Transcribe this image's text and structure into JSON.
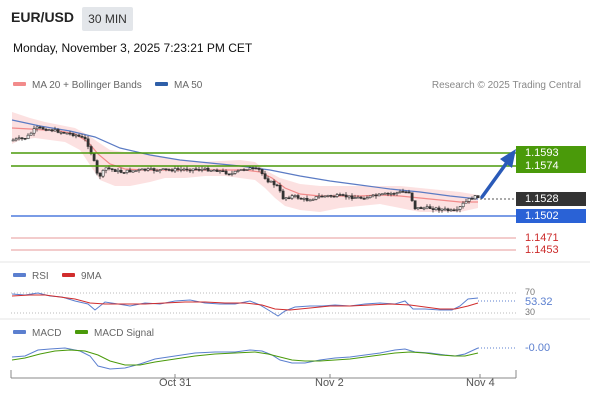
{
  "header": {
    "pair": "EUR/USD",
    "timeframe": "30 MIN",
    "datetime": "Monday, November 3, 2025 7:23:21 PM CET"
  },
  "legend": {
    "ma20_label": "MA 20 + Bollinger Bands",
    "ma50_label": "MA 50",
    "credit": "Research © 2025 Trading Central",
    "ma20_color": "#f28b8b",
    "ma50_color": "#2f5fa8"
  },
  "levels": {
    "r2": "1.1593",
    "r1": "1.1574",
    "current": "1.1528",
    "pivot": "1.1502",
    "s1": "1.1471",
    "s2": "1.1453"
  },
  "colors": {
    "resistance": "#4a9a0a",
    "pivot": "#2a62d6",
    "support": "#cc2b2b",
    "current": "#333333",
    "arrow": "#2a5ab8"
  },
  "rsi": {
    "label": "RSI",
    "ma_label": "9MA",
    "level_upper": "70",
    "level_lower": "30",
    "value": "53.32"
  },
  "macd": {
    "label": "MACD",
    "signal_label": "MACD Signal",
    "value": "-0.00"
  },
  "x_axis": {
    "ticks": [
      "Oct 31",
      "Nov 2",
      "Nov 4"
    ]
  }
}
